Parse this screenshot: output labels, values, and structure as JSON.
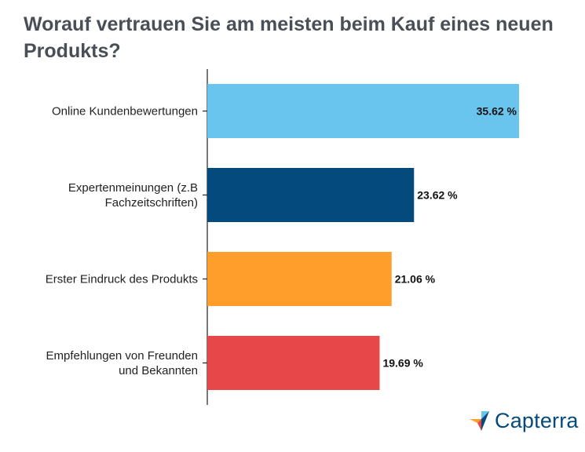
{
  "chart_data": {
    "type": "bar",
    "orientation": "horizontal",
    "title": "Worauf vertrauen Sie am meisten beim Kauf eines neuen Produkts?",
    "categories": [
      [
        "Online Kundenbewertungen"
      ],
      [
        "Expertenmeinungen (z.B",
        "Fachzeitschriften)"
      ],
      [
        "Erster Eindruck des Produkts"
      ],
      [
        "Empfehlungen von Freunden",
        "und Bekannten"
      ]
    ],
    "values": [
      35.62,
      23.62,
      21.06,
      19.69
    ],
    "value_labels": [
      "35.62 %",
      "23.62 %",
      "21.06 %",
      "19.69 %"
    ],
    "colors": [
      "#6ac5ee",
      "#044a7c",
      "#ff9e2a",
      "#e8474a"
    ],
    "xlim": [
      0,
      35.62
    ],
    "grid": false,
    "legend": "none"
  },
  "branding": {
    "logo_text": "Capterra",
    "logo_icon": "capterra-arrow-icon",
    "colors": {
      "blue": "#044a7c",
      "orange": "#ff9e2a",
      "red": "#e8474a",
      "lightblue": "#6ac5ee"
    }
  }
}
